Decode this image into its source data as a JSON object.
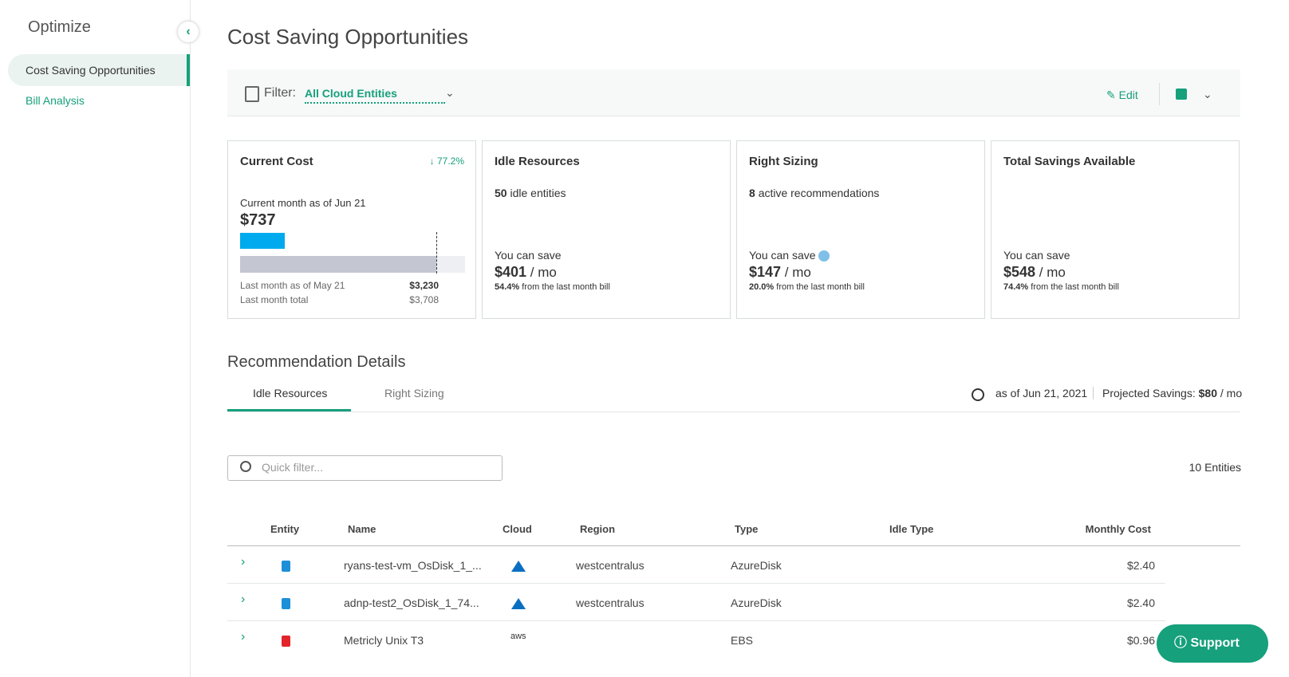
{
  "sidebar": {
    "title": "Optimize",
    "items": [
      "Cost Saving Opportunities",
      "Bill Analysis"
    ]
  },
  "header": {
    "title": "Cost Saving Opportunities"
  },
  "filter": {
    "label": "Filter:",
    "value": "All Cloud Entities",
    "edit": "Edit"
  },
  "cards": {
    "current": {
      "title": "Current Cost",
      "change": "77.2%",
      "subtitle": "Current month as of Jun 21",
      "amount": {
        "value": 737,
        "label": "$737"
      },
      "last_label": "Last month as of May 21",
      "last_value": {
        "value": 3230,
        "label": "$3,230"
      },
      "total_label": "Last month total",
      "total_value": {
        "value": 3708,
        "label": "$3,708"
      }
    },
    "items": [
      {
        "title": "Idle Resources",
        "count": "50",
        "count_text": "idle entities",
        "save_label": "You can save",
        "amount": "$401",
        "unit": "/ mo",
        "pct": "54.4%",
        "pct_text": "from the last month bill"
      },
      {
        "title": "Right Sizing",
        "count": "8",
        "count_text": "active recommendations",
        "save_label": "You can save",
        "amount": "$147",
        "unit": "/ mo",
        "pct": "20.0%",
        "pct_text": "from the last month bill"
      },
      {
        "title": "Total Savings Available",
        "save_label": "You can save",
        "amount": "$548",
        "unit": "/ mo",
        "pct": "74.4%",
        "pct_text": "from the last month bill"
      }
    ]
  },
  "details": {
    "title": "Recommendation Details",
    "tabs": [
      "Idle Resources",
      "Right Sizing"
    ],
    "as_of": "as of Jun 21, 2021",
    "projected_label": "Projected Savings:",
    "projected_value": "$80",
    "projected_unit": "/ mo",
    "search_placeholder": "Quick filter...",
    "entities": "10 Entities"
  },
  "table": {
    "columns": [
      "Entity",
      "Name",
      "Cloud",
      "Region",
      "Type",
      "Idle Type",
      "Monthly Cost"
    ],
    "rows": [
      {
        "name": "ryans-test-vm_OsDisk_1_...",
        "region": "westcentralus",
        "type": "AzureDisk",
        "cost": "$2.40"
      },
      {
        "name": "adnp-test2_OsDisk_1_74...",
        "region": "westcentralus",
        "type": "AzureDisk",
        "cost": "$2.40"
      },
      {
        "name": "Metricly Unix T3",
        "cloud": "aws",
        "type": "EBS",
        "cost": "$0.96"
      }
    ]
  },
  "support": "Support"
}
